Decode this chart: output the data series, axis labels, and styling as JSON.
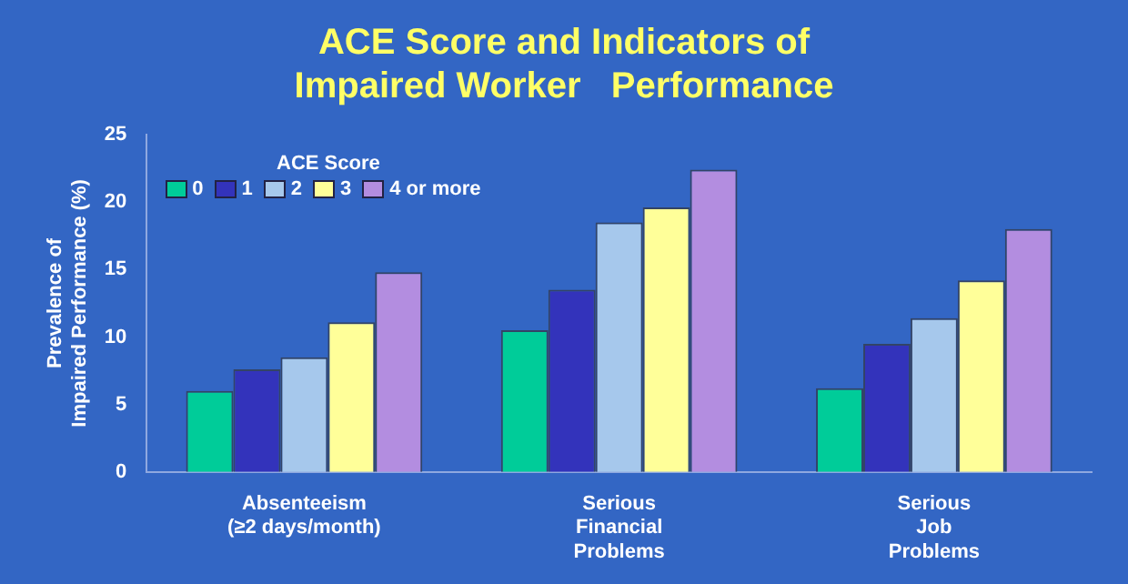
{
  "chart_data": {
    "type": "bar",
    "title": "ACE Score and Indicators of\nImpaired Worker   Performance",
    "ylabel": "Prevalence of\nImpaired Performance (%)",
    "legend_title": "ACE Score",
    "legend": "top left",
    "categories": [
      "Absenteeism\n(≥2 days/month)",
      "Serious\nFinancial\nProblems",
      "Serious\nJob\nProblems"
    ],
    "series": [
      {
        "name": "0",
        "color": "#00cc99",
        "values": [
          6.0,
          10.5,
          6.2
        ]
      },
      {
        "name": "1",
        "color": "#3333bb",
        "values": [
          7.6,
          13.5,
          9.5
        ]
      },
      {
        "name": "2",
        "color": "#a6c8ec",
        "values": [
          8.5,
          18.5,
          11.4
        ]
      },
      {
        "name": "3",
        "color": "#ffff99",
        "values": [
          11.1,
          19.6,
          14.2
        ]
      },
      {
        "name": "4 or more",
        "color": "#b38de0",
        "values": [
          14.8,
          22.4,
          18.0
        ]
      }
    ],
    "ylim": [
      0,
      25
    ],
    "yticks": [
      0,
      5,
      10,
      15,
      20,
      25
    ]
  }
}
